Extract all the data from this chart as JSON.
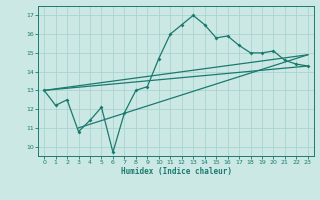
{
  "title": "",
  "xlabel": "Humidex (Indice chaleur)",
  "ylabel": "",
  "bg_color": "#cce8e4",
  "grid_color": "#aad4d0",
  "line_color": "#1a7a6e",
  "xlim": [
    -0.5,
    23.5
  ],
  "ylim": [
    9.5,
    17.5
  ],
  "xticks": [
    0,
    1,
    2,
    3,
    4,
    5,
    6,
    7,
    8,
    9,
    10,
    11,
    12,
    13,
    14,
    15,
    16,
    17,
    18,
    19,
    20,
    21,
    22,
    23
  ],
  "yticks": [
    10,
    11,
    12,
    13,
    14,
    15,
    16,
    17
  ],
  "line1_x": [
    0,
    1,
    2,
    3,
    4,
    5,
    6,
    7,
    8,
    9,
    10,
    11,
    12,
    13,
    14,
    15,
    16,
    17,
    18,
    19,
    20,
    21,
    22,
    23
  ],
  "line1_y": [
    13.0,
    12.2,
    12.5,
    10.8,
    11.4,
    12.1,
    9.7,
    11.8,
    13.0,
    13.2,
    14.7,
    16.0,
    16.5,
    17.0,
    16.5,
    15.8,
    15.9,
    15.4,
    15.0,
    15.0,
    15.1,
    14.6,
    14.4,
    14.3
  ],
  "line2_x": [
    0,
    23
  ],
  "line2_y": [
    13.0,
    14.3
  ],
  "line3_x": [
    3,
    23
  ],
  "line3_y": [
    11.0,
    14.9
  ],
  "line4_x": [
    0,
    23
  ],
  "line4_y": [
    13.0,
    14.9
  ]
}
